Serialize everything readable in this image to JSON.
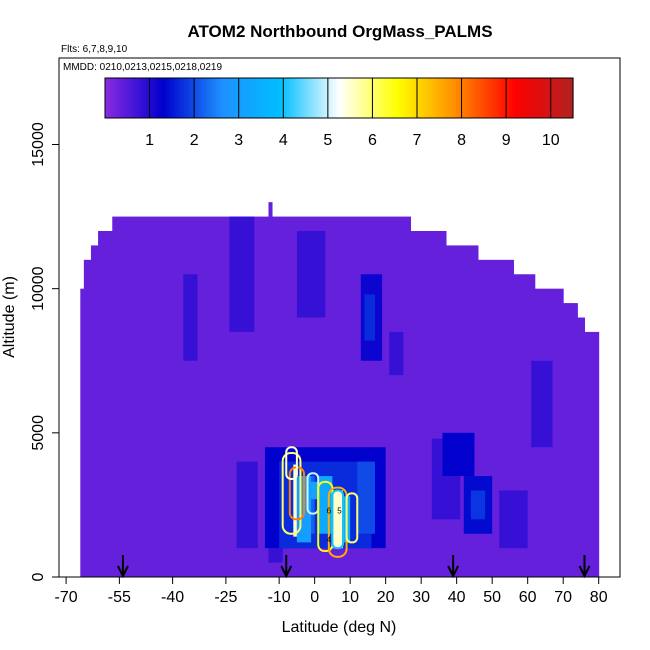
{
  "chart_data": {
    "type": "heatmap",
    "title": "ATOM2 Northbound OrgMass_PALMS",
    "subtitle_flights": "Flts: 6,7,8,9,10",
    "subtitle_dates": "MMDD: 0210,0213,0215,0218,0219",
    "xlabel": "Latitude (deg N)",
    "ylabel": "Altitude (m)",
    "xlim": [
      -72,
      86
    ],
    "ylim": [
      0,
      18000
    ],
    "x_ticks": [
      -70,
      -55,
      -40,
      -25,
      -10,
      0,
      10,
      20,
      30,
      40,
      50,
      60,
      70,
      80
    ],
    "y_ticks": [
      0,
      5000,
      10000,
      15000
    ],
    "colorbar": {
      "range": [
        0,
        10.5
      ],
      "tick_values": [
        1,
        2,
        3,
        4,
        5,
        6,
        7,
        8,
        9,
        10
      ],
      "colors": [
        "#8a2be2",
        "#0000cd",
        "#1e90ff",
        "#00bfff",
        "#ffffff",
        "#ffff00",
        "#ff8c00",
        "#ff0000",
        "#b22222"
      ]
    },
    "sounding_latitudes": [
      -54,
      -8,
      39,
      76
    ],
    "envelope": [
      {
        "x0": -66,
        "x1": -65,
        "top": 10000
      },
      {
        "x0": -65,
        "x1": -63,
        "top": 11000
      },
      {
        "x0": -63,
        "x1": -61,
        "top": 11500
      },
      {
        "x0": -61,
        "x1": -57,
        "top": 12000
      },
      {
        "x0": -57,
        "x1": -13,
        "top": 12500
      },
      {
        "x0": -13,
        "x1": -12,
        "top": 13000
      },
      {
        "x0": -12,
        "x1": 27,
        "top": 12500
      },
      {
        "x0": 27,
        "x1": 37,
        "top": 12000
      },
      {
        "x0": 37,
        "x1": 46,
        "top": 11500
      },
      {
        "x0": 46,
        "x1": 56,
        "top": 11000
      },
      {
        "x0": 56,
        "x1": 62,
        "top": 10500
      },
      {
        "x0": 62,
        "x1": 70,
        "top": 10000
      },
      {
        "x0": 70,
        "x1": 74,
        "top": 9500
      },
      {
        "x0": 74,
        "x1": 76,
        "top": 9000
      },
      {
        "x0": 76,
        "x1": 80,
        "top": 8500
      }
    ],
    "patches": [
      {
        "x0": -37,
        "x1": -33,
        "y0": 7500,
        "y1": 10500,
        "v": 0.8
      },
      {
        "x0": -24,
        "x1": -17,
        "y0": 8500,
        "y1": 12500,
        "v": 0.8
      },
      {
        "x0": -5,
        "x1": 3,
        "y0": 9000,
        "y1": 12000,
        "v": 0.8
      },
      {
        "x0": 13,
        "x1": 19,
        "y0": 7500,
        "y1": 10500,
        "v": 1.2
      },
      {
        "x0": 14,
        "x1": 17,
        "y0": 8200,
        "y1": 9800,
        "v": 1.7
      },
      {
        "x0": 21,
        "x1": 25,
        "y0": 7000,
        "y1": 8500,
        "v": 0.8
      },
      {
        "x0": 33,
        "x1": 41,
        "y0": 2000,
        "y1": 4800,
        "v": 0.8
      },
      {
        "x0": 36,
        "x1": 45,
        "y0": 3500,
        "y1": 5000,
        "v": 1.3
      },
      {
        "x0": 42,
        "x1": 50,
        "y0": 1500,
        "y1": 3500,
        "v": 1.4
      },
      {
        "x0": 44,
        "x1": 48,
        "y0": 2000,
        "y1": 3000,
        "v": 1.8
      },
      {
        "x0": 61,
        "x1": 67,
        "y0": 4500,
        "y1": 7500,
        "v": 0.8
      },
      {
        "x0": -22,
        "x1": -16,
        "y0": 1000,
        "y1": 4000,
        "v": 0.8
      },
      {
        "x0": -13,
        "x1": -9,
        "y0": 500,
        "y1": 1000,
        "v": 0.8
      },
      {
        "x0": 52,
        "x1": 60,
        "y0": 1000,
        "y1": 3000,
        "v": 0.8
      },
      {
        "x0": -14,
        "x1": 20,
        "y0": 1000,
        "y1": 4500,
        "v": 1.3
      },
      {
        "x0": -10,
        "x1": 16,
        "y0": 1000,
        "y1": 4000,
        "v": 1.7
      },
      {
        "x0": 12,
        "x1": 17,
        "y0": 1500,
        "y1": 4000,
        "v": 2.0
      },
      {
        "x0": -4,
        "x1": 0,
        "y0": 1500,
        "y1": 3500,
        "v": 2.2
      },
      {
        "x0": -6,
        "x1": -5,
        "y0": 1400,
        "y1": 3900,
        "v": 5.5
      },
      {
        "x0": -5,
        "x1": -1,
        "y0": 1200,
        "y1": 3500,
        "v": 3.0
      },
      {
        "x0": -1,
        "x1": 1,
        "y0": 2700,
        "y1": 3300,
        "v": 3.2
      },
      {
        "x0": 1,
        "x1": 5,
        "y0": 1500,
        "y1": 3500,
        "v": 3.3
      },
      {
        "x0": 5,
        "x1": 8,
        "y0": 1000,
        "y1": 3000,
        "v": 5.5
      },
      {
        "x0": 8,
        "x1": 10,
        "y0": 1200,
        "y1": 2800,
        "v": 3.5
      }
    ],
    "contours": [
      {
        "x0": -9,
        "x1": -4,
        "y0": 1500,
        "y1": 4300,
        "v": 6.0
      },
      {
        "x0": -7,
        "x1": -3,
        "y0": 2000,
        "y1": 3800,
        "v": 8.0
      },
      {
        "x0": -2,
        "x1": 1,
        "y0": 2200,
        "y1": 3600,
        "v": 5.0
      },
      {
        "x0": 1,
        "x1": 5,
        "y0": 900,
        "y1": 3300,
        "v": 6.5
      },
      {
        "x0": 4,
        "x1": 9,
        "y0": 700,
        "y1": 3100,
        "v": 7.5
      },
      {
        "x0": 9,
        "x1": 12,
        "y0": 1200,
        "y1": 2900,
        "v": 6.0
      },
      {
        "x0": 5,
        "x1": 8,
        "y0": 1000,
        "y1": 3000,
        "v": 4.0
      },
      {
        "x0": -8,
        "x1": -5,
        "y0": 3400,
        "y1": 4500,
        "v": 5.5
      }
    ],
    "contour_labels": [
      {
        "x": 4,
        "y": 2200,
        "text": "6"
      },
      {
        "x": 7,
        "y": 2200,
        "text": "5"
      },
      {
        "x": 4,
        "y": 1200,
        "text": "4"
      }
    ]
  }
}
